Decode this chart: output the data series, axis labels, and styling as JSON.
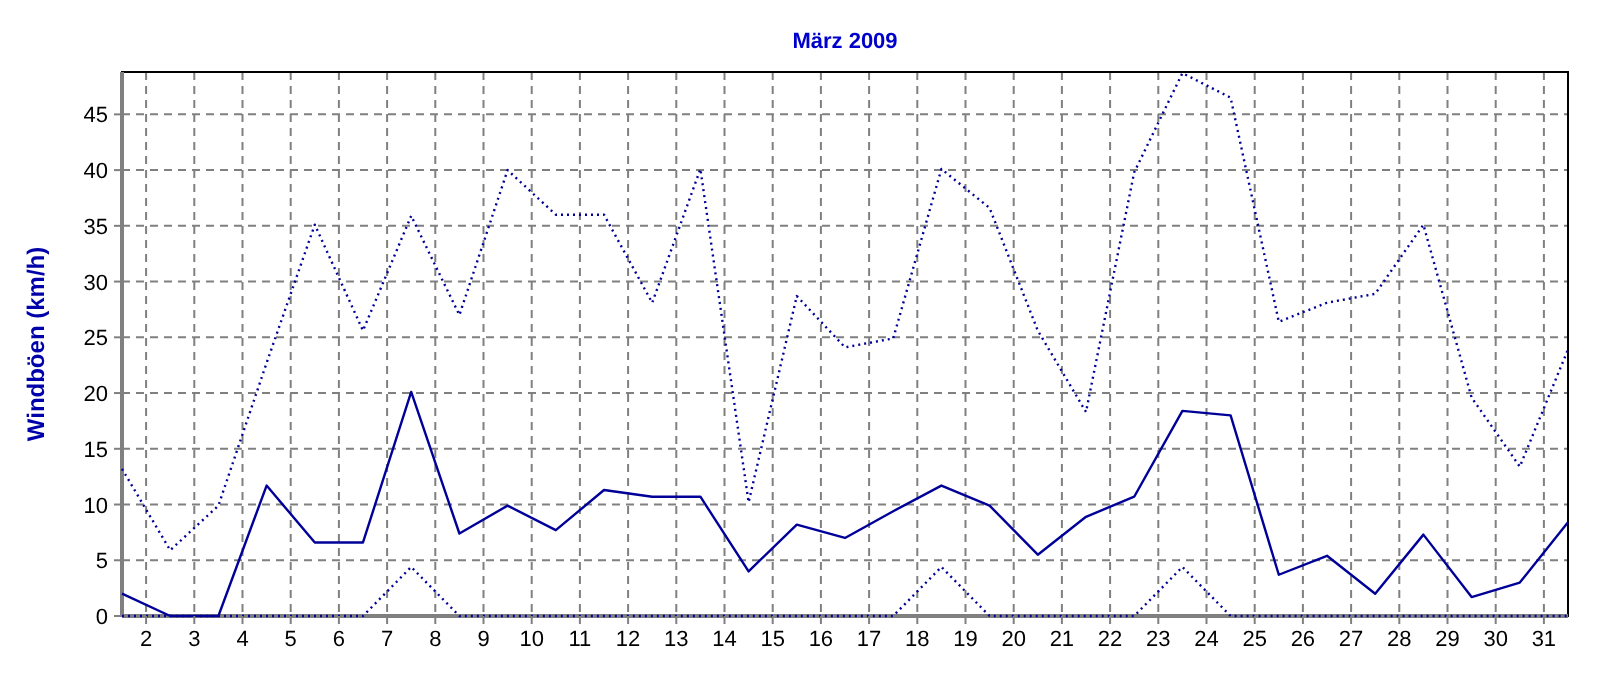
{
  "chart_data": {
    "type": "line",
    "title": "März 2009",
    "ylabel": "Windböen (km/h)",
    "x": [
      1.5,
      2.5,
      3.5,
      4.5,
      5.5,
      6.5,
      7.5,
      8.5,
      9.5,
      10.5,
      11.5,
      12.5,
      13.5,
      14.5,
      15.5,
      16.5,
      17.5,
      18.5,
      19.5,
      20.5,
      21.5,
      22.5,
      23.5,
      24.5,
      25.5,
      26.5,
      27.5,
      28.5,
      29.5,
      30.5,
      31.5
    ],
    "xlim": [
      1.5,
      31.5
    ],
    "xticks": [
      2,
      3,
      4,
      5,
      6,
      7,
      8,
      9,
      10,
      11,
      12,
      13,
      14,
      15,
      16,
      17,
      18,
      19,
      20,
      21,
      22,
      23,
      24,
      25,
      26,
      27,
      28,
      29,
      30,
      31
    ],
    "ylim": [
      0,
      48.8
    ],
    "yticks": [
      0,
      5,
      10,
      15,
      20,
      25,
      30,
      35,
      40,
      45
    ],
    "grid": true,
    "marker": "none",
    "series": [
      {
        "color": "#000099",
        "line_style": "dotted",
        "values": [
          13.2,
          5.9,
          9.9,
          22.7,
          35.1,
          25.6,
          35.9,
          27.0,
          40.0,
          36.0,
          36.0,
          28.1,
          40.1,
          10.2,
          28.7,
          24.1,
          24.9,
          40.1,
          36.6,
          25.6,
          18.3,
          39.8,
          48.7,
          46.5,
          26.4,
          28.1,
          28.9,
          35.1,
          19.6,
          13.4,
          23.9
        ]
      },
      {
        "color": "#000099",
        "line_style": "solid",
        "values": [
          2.0,
          0,
          0,
          11.7,
          6.6,
          6.6,
          20.1,
          7.4,
          9.9,
          7.7,
          11.3,
          10.7,
          10.7,
          4.0,
          8.2,
          7.0,
          9.4,
          11.7,
          9.9,
          5.5,
          8.9,
          10.7,
          18.4,
          18.0,
          3.7,
          5.4,
          2.0,
          7.3,
          1.7,
          3.0,
          8.4
        ]
      },
      {
        "color": "#000099",
        "line_style": "dotted",
        "values": [
          0,
          0,
          0,
          0,
          0,
          0,
          4.4,
          0,
          0,
          0,
          0,
          0,
          0,
          0,
          0,
          0,
          0,
          4.4,
          0,
          0,
          0,
          0,
          4.4,
          0,
          0,
          0,
          0,
          0,
          0,
          0,
          0
        ]
      }
    ]
  }
}
